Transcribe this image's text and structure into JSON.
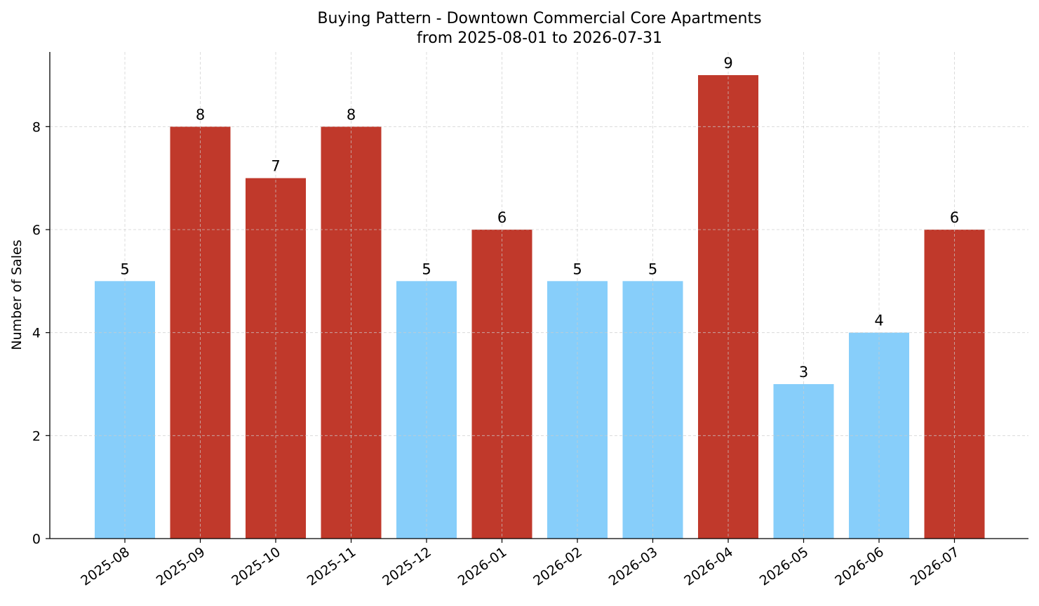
{
  "chart_data": {
    "type": "bar",
    "title_line1": "Buying Pattern - Downtown Commercial Core Apartments",
    "title_line2": "from 2025-08-01 to 2026-07-31",
    "xlabel": "",
    "ylabel": "Number of Sales",
    "categories": [
      "2025-08",
      "2025-09",
      "2025-10",
      "2025-11",
      "2025-12",
      "2026-01",
      "2026-02",
      "2026-03",
      "2026-04",
      "2026-05",
      "2026-06",
      "2026-07"
    ],
    "values": [
      5,
      8,
      7,
      8,
      5,
      6,
      5,
      5,
      9,
      3,
      4,
      6
    ],
    "bar_colors": [
      "#87CEFA",
      "#C0392B",
      "#C0392B",
      "#C0392B",
      "#87CEFA",
      "#C0392B",
      "#87CEFA",
      "#87CEFA",
      "#C0392B",
      "#87CEFA",
      "#87CEFA",
      "#C0392B"
    ],
    "ylim": [
      0,
      9.45
    ],
    "yticks": [
      0,
      2,
      4,
      6,
      8
    ],
    "grid": true,
    "data_labels": true
  }
}
